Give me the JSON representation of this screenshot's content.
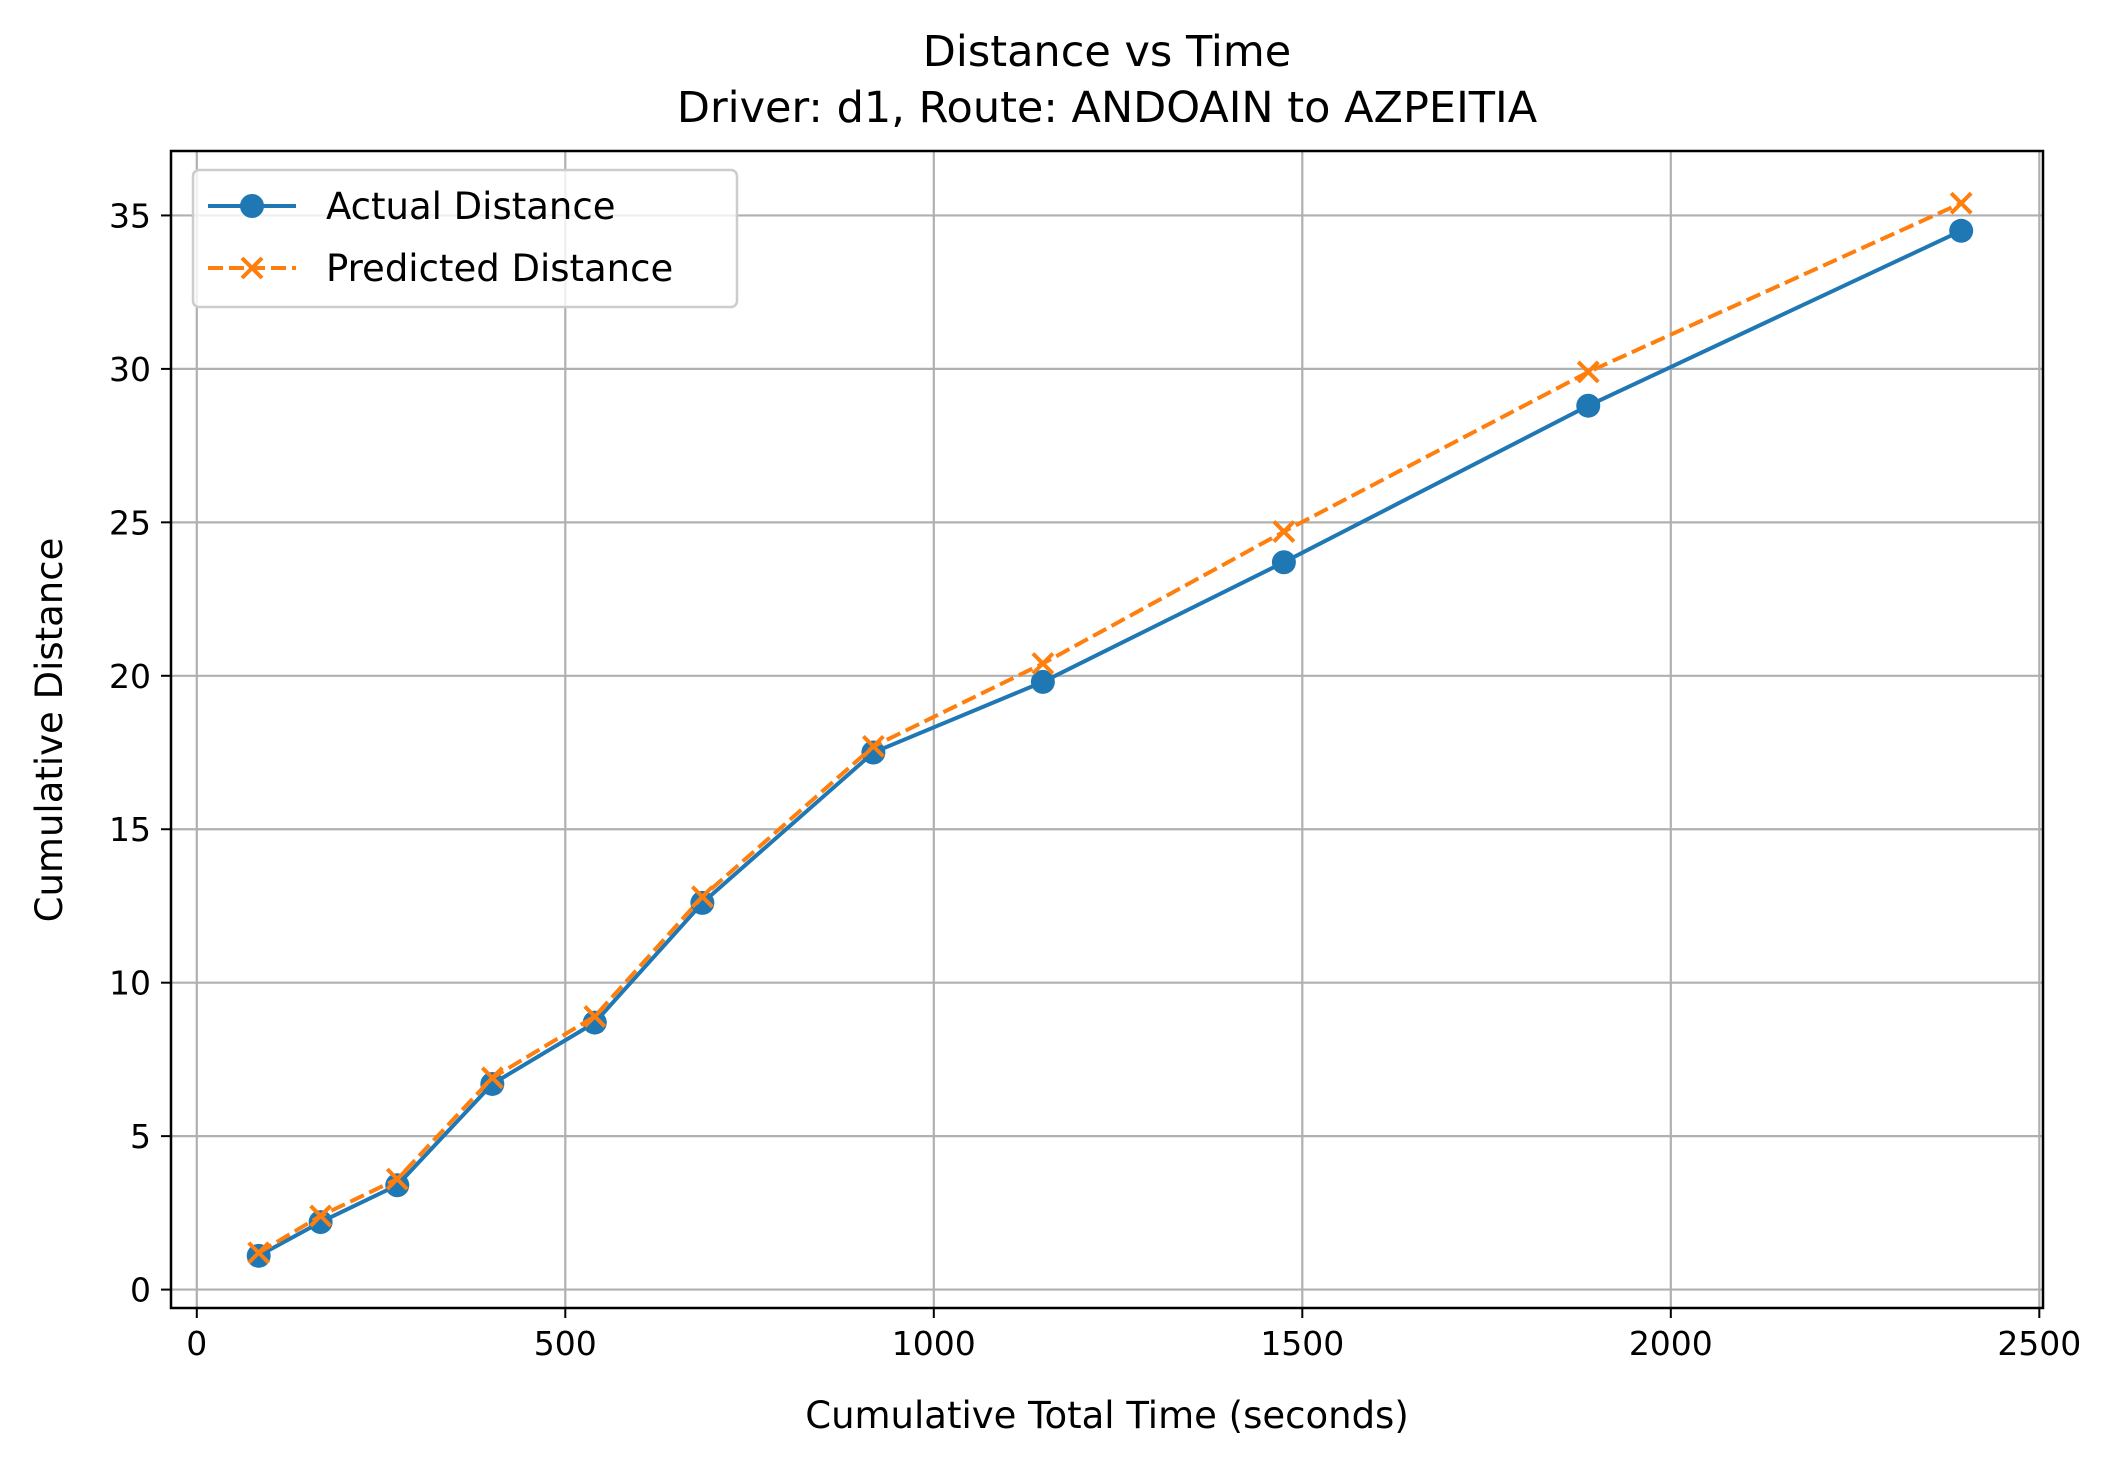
{
  "chart_data": {
    "type": "line",
    "title": "Distance vs Time",
    "subtitle": "Driver: d1, Route: ANDOAIN to AZPEITIA",
    "xlabel": "Cumulative Total Time (seconds)",
    "ylabel": "Cumulative Distance",
    "xlim": [
      -35,
      2505
    ],
    "ylim": [
      -0.6,
      37.1
    ],
    "xticks": [
      0,
      500,
      1000,
      1500,
      2000,
      2500
    ],
    "yticks": [
      0,
      5,
      10,
      15,
      20,
      25,
      30,
      35
    ],
    "grid": true,
    "legend_position": "top-left",
    "x": [
      84,
      168,
      272,
      401,
      540,
      686,
      918,
      1148,
      1475,
      1888,
      2394
    ],
    "series": [
      {
        "name": "Actual Distance",
        "color": "#1f77b4",
        "marker": "circle",
        "line_style": "solid",
        "values": [
          1.1,
          2.2,
          3.4,
          6.7,
          8.7,
          12.6,
          17.5,
          19.8,
          23.7,
          28.8,
          34.5
        ]
      },
      {
        "name": "Predicted Distance",
        "color": "#ff7f0e",
        "marker": "x",
        "line_style": "dashed",
        "values": [
          1.2,
          2.4,
          3.6,
          6.9,
          8.9,
          12.8,
          17.7,
          20.4,
          24.7,
          29.9,
          35.4
        ]
      }
    ]
  }
}
